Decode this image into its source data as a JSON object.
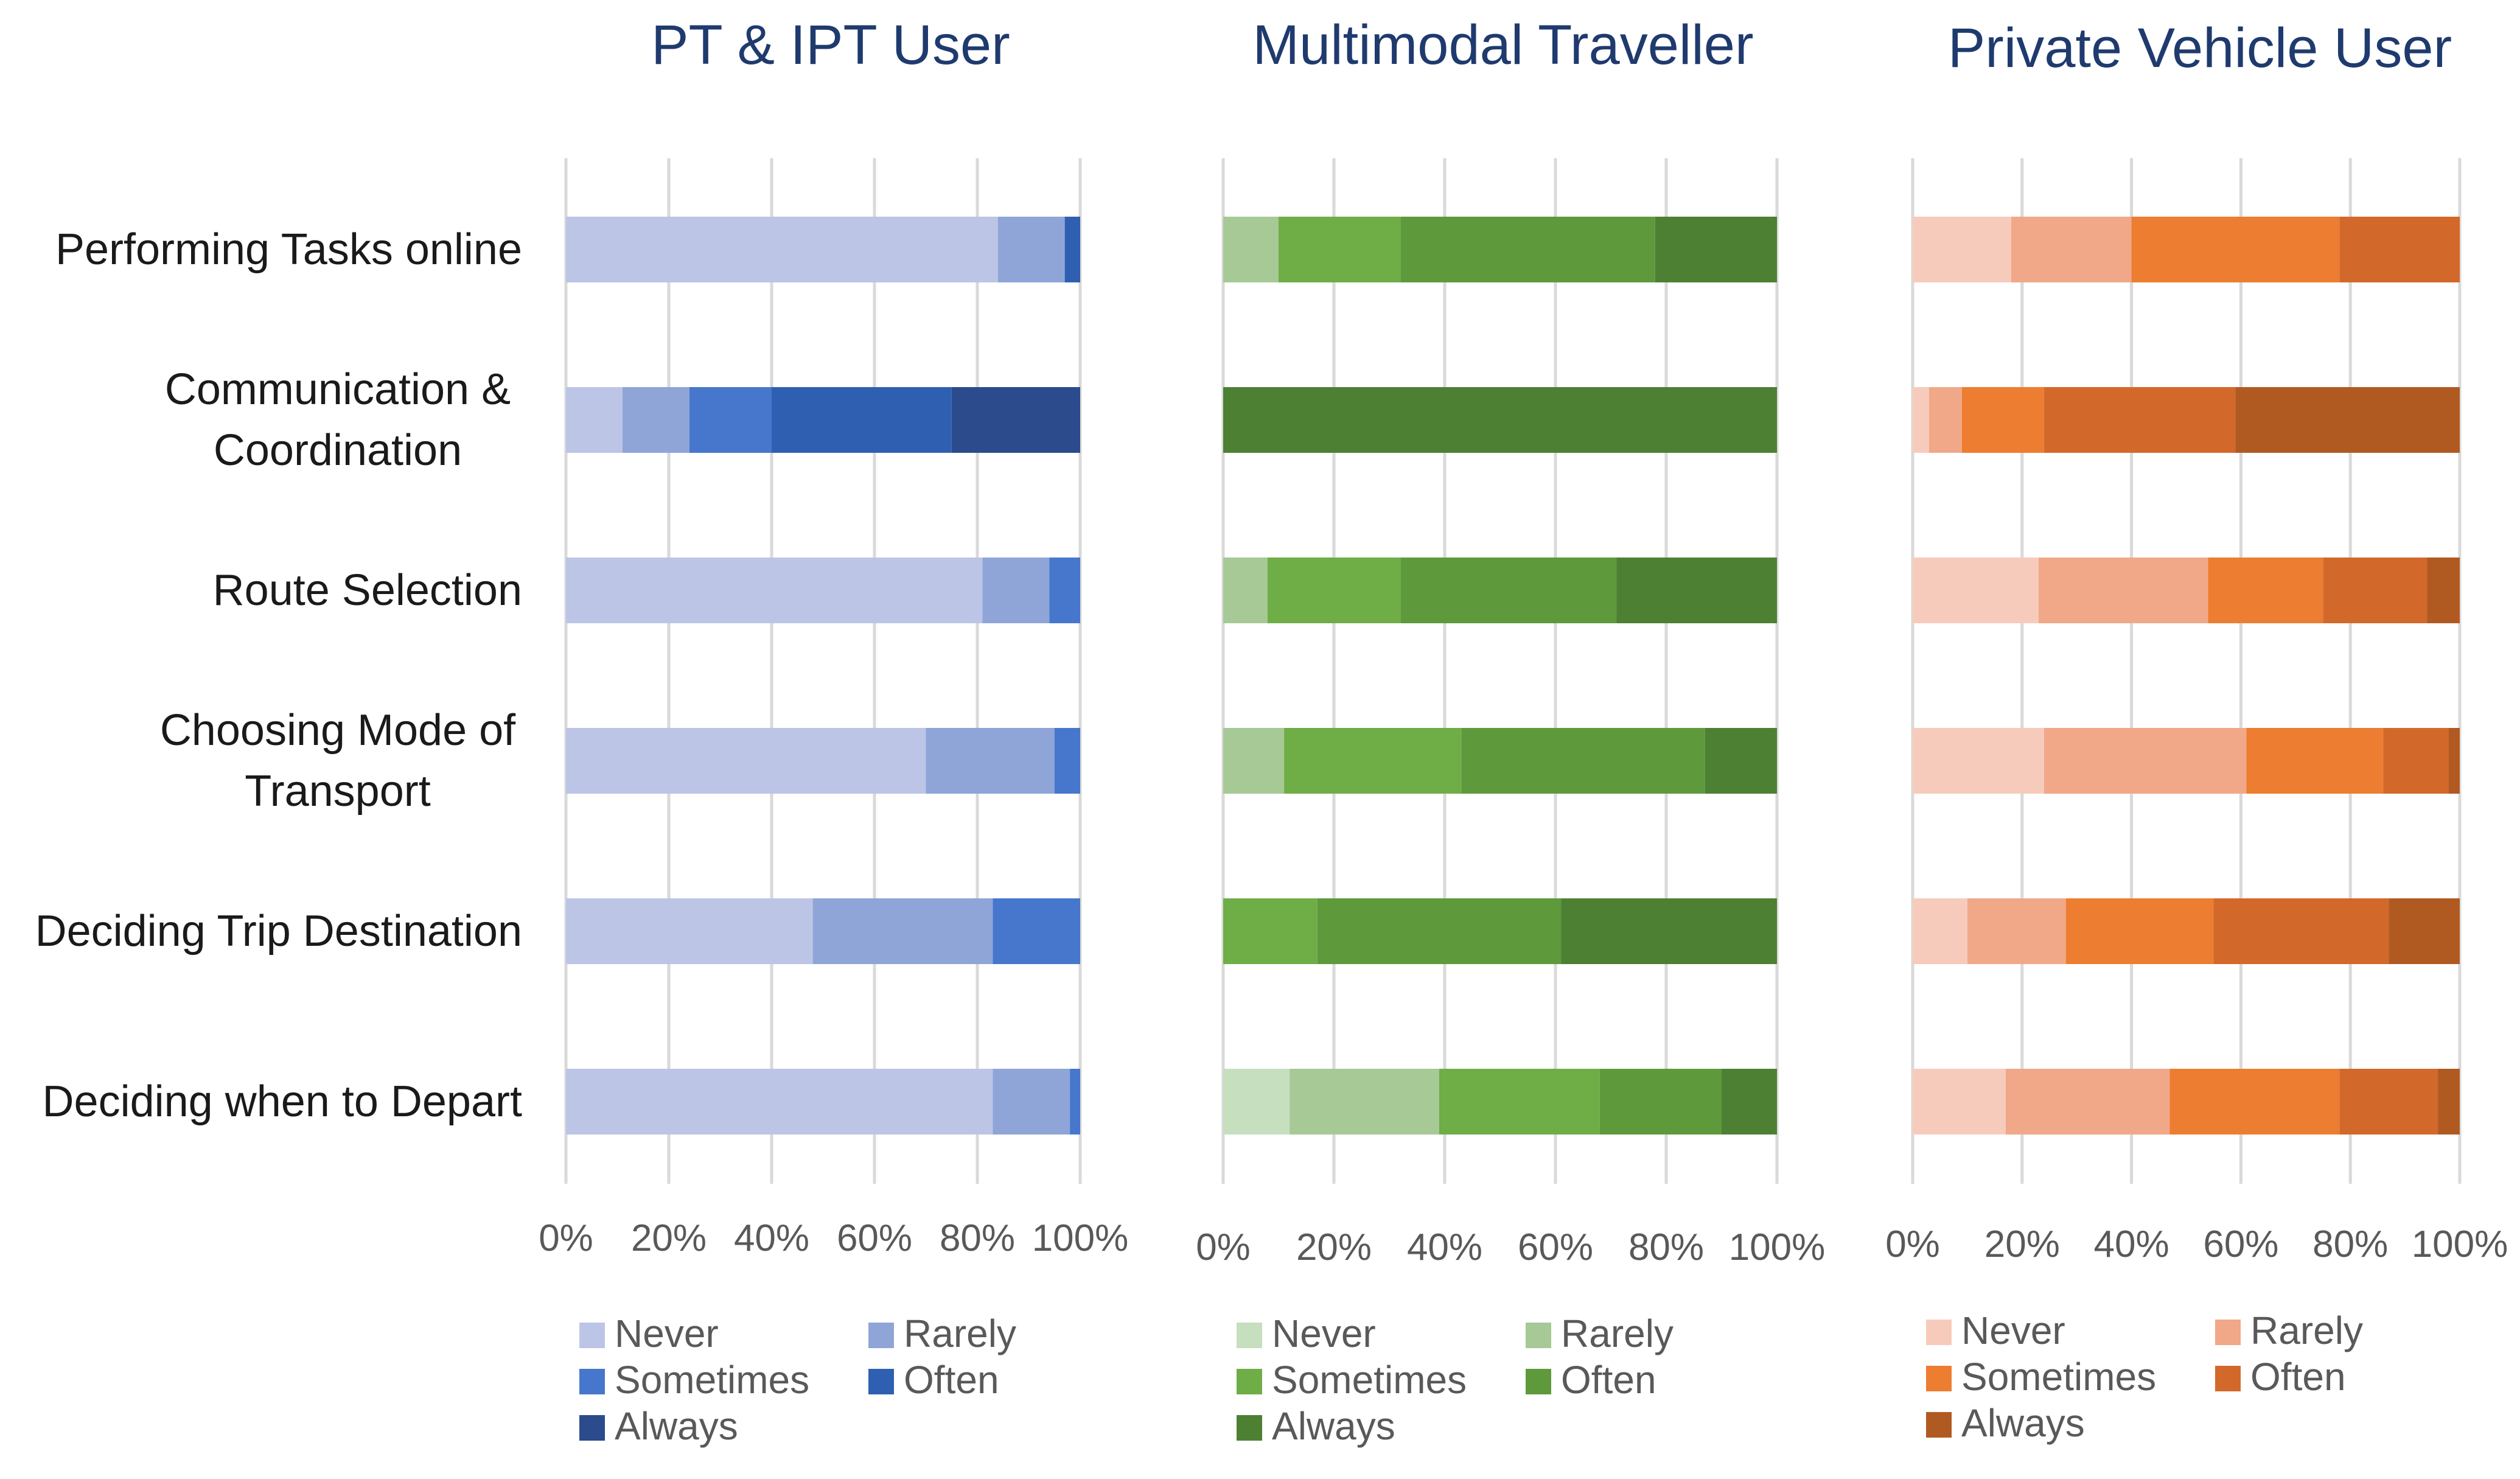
{
  "chart_data": [
    {
      "type": "bar",
      "orientation": "horizontal",
      "stacked": "percent",
      "title": "PT & IPT User",
      "categories": [
        "Performing Tasks online",
        "Communication & Coordination",
        "Route Selection",
        "Choosing Mode of Transport",
        "Deciding Trip Destination",
        "Deciding when to Depart"
      ],
      "category_lines": [
        [
          "Performing Tasks online"
        ],
        [
          "Communication &",
          "Coordination"
        ],
        [
          "Route Selection"
        ],
        [
          "Choosing Mode of",
          "Transport"
        ],
        [
          "Deciding Trip Destination"
        ],
        [
          "Deciding when to Depart"
        ]
      ],
      "xlim": [
        0,
        100
      ],
      "xticks": [
        "0%",
        "20%",
        "40%",
        "60%",
        "80%",
        "100%"
      ],
      "grid": true,
      "legend_position": "bottom",
      "series": [
        {
          "name": "Never",
          "color": "#bcc5e6",
          "values": [
            84,
            11,
            81,
            70,
            48,
            83
          ]
        },
        {
          "name": "Rarely",
          "color": "#8fa5d8",
          "values": [
            13,
            13,
            13,
            25,
            35,
            15
          ]
        },
        {
          "name": "Sometimes",
          "color": "#4677cc",
          "values": [
            0,
            16,
            6,
            5,
            17,
            2
          ]
        },
        {
          "name": "Often",
          "color": "#2f5fb0",
          "values": [
            3,
            35,
            0,
            0,
            0,
            0
          ]
        },
        {
          "name": "Always",
          "color": "#2b4b8c",
          "values": [
            0,
            25,
            0,
            0,
            0,
            0
          ]
        }
      ]
    },
    {
      "type": "bar",
      "orientation": "horizontal",
      "stacked": "percent",
      "title": "Multimodal Traveller",
      "categories": [
        "Performing Tasks online",
        "Communication & Coordination",
        "Route Selection",
        "Choosing Mode of Transport",
        "Deciding Trip Destination",
        "Deciding when to Depart"
      ],
      "xlim": [
        0,
        100
      ],
      "xticks": [
        "0%",
        "20%",
        "40%",
        "60%",
        "80%",
        "100%"
      ],
      "grid": true,
      "legend_position": "bottom",
      "series": [
        {
          "name": "Never",
          "color": "#c6dfbf",
          "values": [
            0,
            0,
            0,
            0,
            0,
            12
          ]
        },
        {
          "name": "Rarely",
          "color": "#a6c996",
          "values": [
            10,
            0,
            8,
            11,
            0,
            27
          ]
        },
        {
          "name": "Sometimes",
          "color": "#6fad47",
          "values": [
            22,
            0,
            24,
            32,
            17,
            29
          ]
        },
        {
          "name": "Often",
          "color": "#5e9a3c",
          "values": [
            46,
            0,
            39,
            44,
            44,
            22
          ]
        },
        {
          "name": "Always",
          "color": "#4d8033",
          "values": [
            22,
            100,
            29,
            13,
            39,
            10
          ]
        }
      ]
    },
    {
      "type": "bar",
      "orientation": "horizontal",
      "stacked": "percent",
      "title": "Private Vehicle User",
      "categories": [
        "Performing Tasks online",
        "Communication & Coordination",
        "Route Selection",
        "Choosing Mode of Transport",
        "Deciding Trip Destination",
        "Deciding when to Depart"
      ],
      "xlim": [
        0,
        100
      ],
      "xticks": [
        "0%",
        "20%",
        "40%",
        "60%",
        "80%",
        "100%"
      ],
      "grid": true,
      "legend_position": "bottom",
      "series": [
        {
          "name": "Never",
          "color": "#f7cbbb",
          "values": [
            18,
            3,
            23,
            24,
            10,
            17
          ]
        },
        {
          "name": "Rarely",
          "color": "#f0a889",
          "values": [
            22,
            6,
            31,
            37,
            18,
            30
          ]
        },
        {
          "name": "Sometimes",
          "color": "#ed7d31",
          "values": [
            38,
            15,
            21,
            25,
            27,
            31
          ]
        },
        {
          "name": "Often",
          "color": "#d2692b",
          "values": [
            22,
            35,
            19,
            12,
            32,
            18
          ]
        },
        {
          "name": "Always",
          "color": "#b05a22",
          "values": [
            0,
            41,
            6,
            2,
            13,
            4
          ]
        }
      ]
    }
  ]
}
